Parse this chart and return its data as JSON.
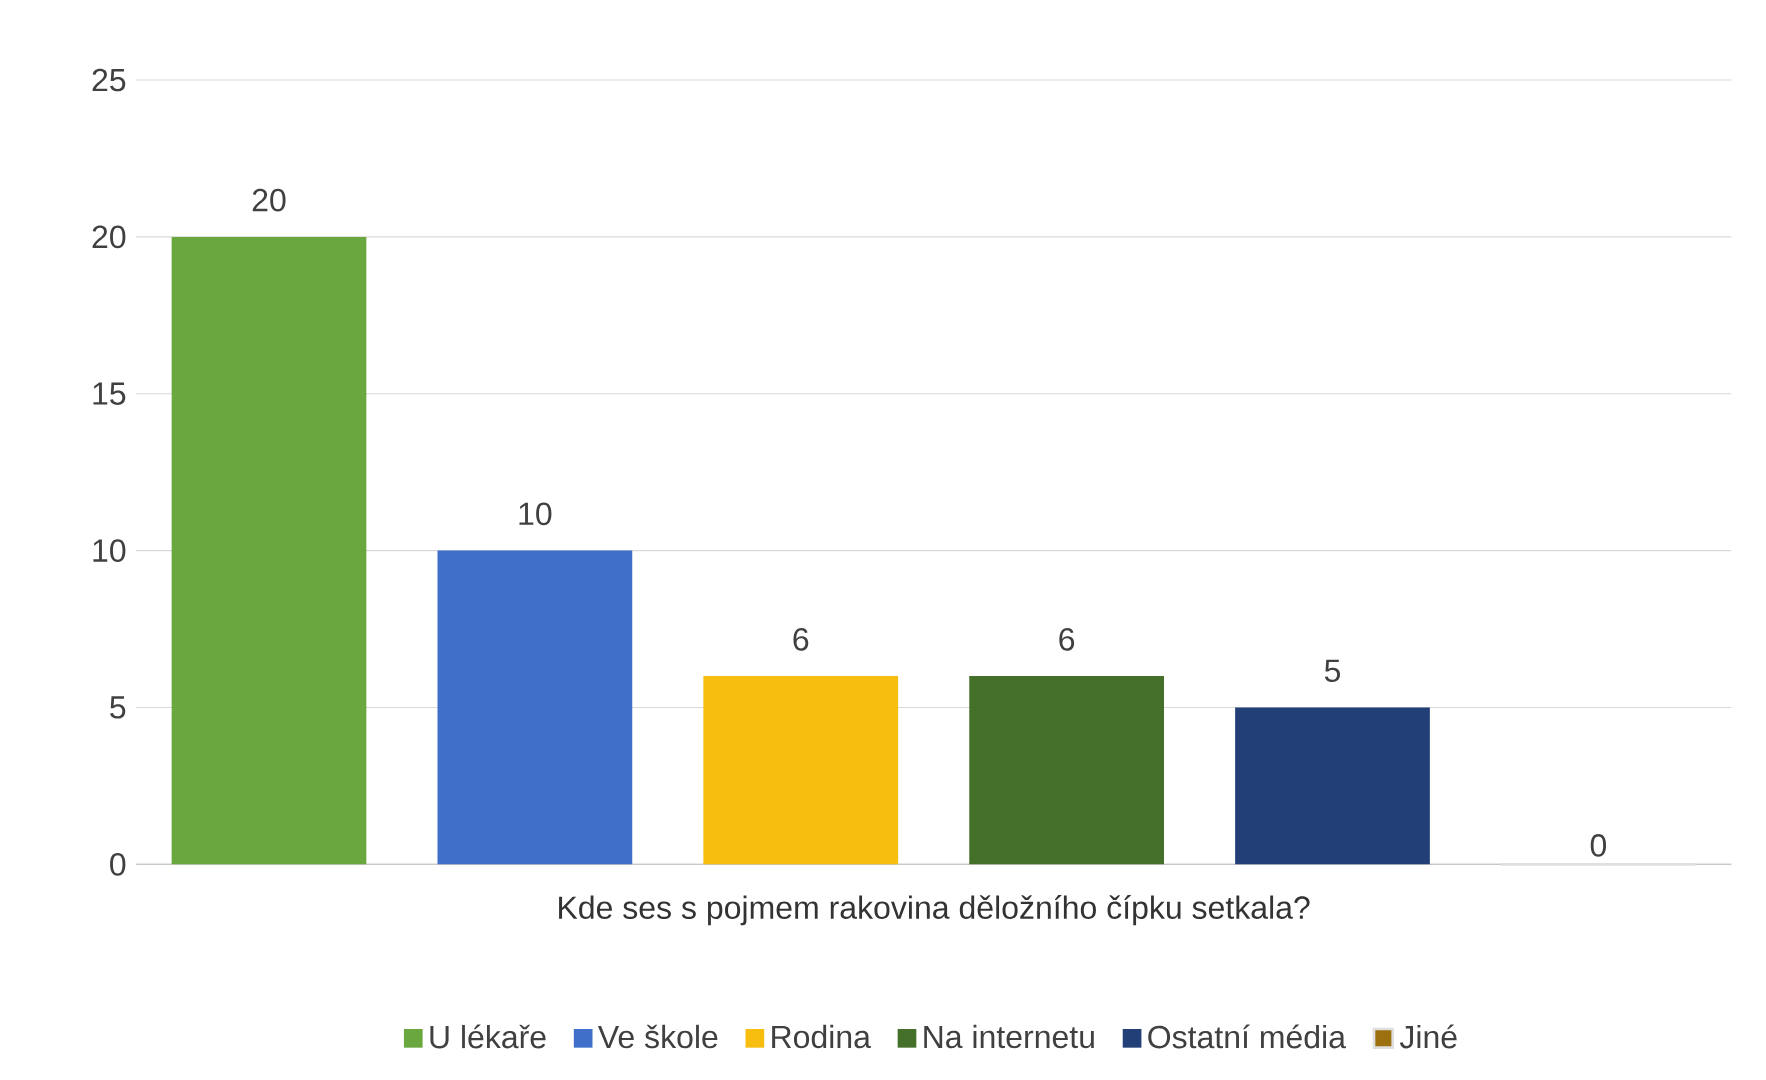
{
  "chart_data": {
    "type": "bar",
    "xlabel": "Kde ses s pojmem rakovina děložního čípku setkala?",
    "categories": [
      null,
      null,
      null,
      null,
      null,
      null
    ],
    "series": [
      {
        "name": "U lékaře",
        "color": "#6aa83f",
        "values": [
          20,
          null,
          null,
          null,
          null,
          null
        ]
      },
      {
        "name": "Ve škole",
        "color": "#3f6fc9",
        "values": [
          null,
          10,
          null,
          null,
          null,
          null
        ]
      },
      {
        "name": "Rodina",
        "color": "#f7bd0f",
        "values": [
          null,
          null,
          6,
          null,
          null,
          null
        ]
      },
      {
        "name": "Na internetu",
        "color": "#44702a",
        "values": [
          null,
          null,
          null,
          6,
          null,
          null
        ]
      },
      {
        "name": "Ostatní média",
        "color": "#233f78",
        "values": [
          null,
          null,
          null,
          null,
          5,
          null
        ]
      },
      {
        "name": "Jiné",
        "color": "#9c6f0f",
        "values": [
          null,
          null,
          null,
          null,
          null,
          0
        ]
      }
    ],
    "ylim": [
      0,
      25
    ],
    "yticks": [
      0,
      5,
      10,
      15,
      20,
      25
    ],
    "grid": "y",
    "legend": "bottom",
    "data_labels": true
  }
}
